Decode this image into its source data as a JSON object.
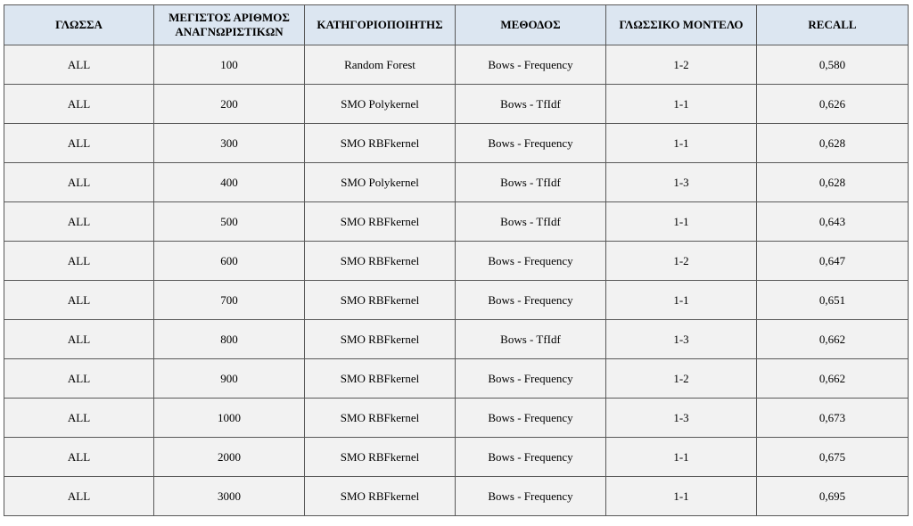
{
  "table": {
    "headers": [
      "ΓΛΩΣΣΑ",
      "ΜΕΓΙΣΤΟΣ ΑΡΙΘΜΟΣ ΑΝΑΓΝΩΡΙΣΤΙΚΩΝ",
      "ΚΑΤΗΓΟΡΙΟΠΟΙΗΤΗΣ",
      "ΜΕΘΟΔΟΣ",
      "ΓΛΩΣΣΙΚΟ ΜΟΝΤΕΛΟ",
      "RECALL"
    ],
    "rows": [
      [
        "ALL",
        "100",
        "Random Forest",
        "Bows - Frequency",
        "1-2",
        "0,580"
      ],
      [
        "ALL",
        "200",
        "SMO Polykernel",
        "Bows - TfIdf",
        "1-1",
        "0,626"
      ],
      [
        "ALL",
        "300",
        "SMO RBFkernel",
        "Bows - Frequency",
        "1-1",
        "0,628"
      ],
      [
        "ALL",
        "400",
        "SMO Polykernel",
        "Bows - TfIdf",
        "1-3",
        "0,628"
      ],
      [
        "ALL",
        "500",
        "SMO RBFkernel",
        "Bows - TfIdf",
        "1-1",
        "0,643"
      ],
      [
        "ALL",
        "600",
        "SMO RBFkernel",
        "Bows - Frequency",
        "1-2",
        "0,647"
      ],
      [
        "ALL",
        "700",
        "SMO RBFkernel",
        "Bows - Frequency",
        "1-1",
        "0,651"
      ],
      [
        "ALL",
        "800",
        "SMO RBFkernel",
        "Bows - TfIdf",
        "1-3",
        "0,662"
      ],
      [
        "ALL",
        "900",
        "SMO RBFkernel",
        "Bows - Frequency",
        "1-2",
        "0,662"
      ],
      [
        "ALL",
        "1000",
        "SMO RBFkernel",
        "Bows - Frequency",
        "1-3",
        "0,673"
      ],
      [
        "ALL",
        "2000",
        "SMO RBFkernel",
        "Bows - Frequency",
        "1-1",
        "0,675"
      ],
      [
        "ALL",
        "3000",
        "SMO RBFkernel",
        "Bows - Frequency",
        "1-1",
        "0,695"
      ]
    ]
  },
  "colors": {
    "header_background": "#dce6f1",
    "row_background": "#f2f2f2",
    "border": "#595959"
  }
}
